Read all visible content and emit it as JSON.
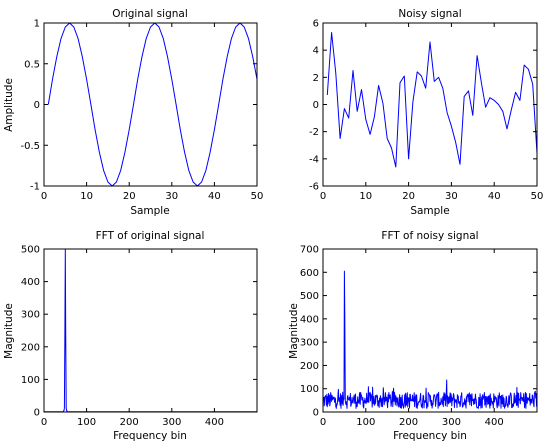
{
  "chart_data": [
    {
      "id": "original",
      "type": "line",
      "title": "Original signal",
      "xlabel": "Sample",
      "ylabel": "Amplitude",
      "xlim": [
        0,
        50
      ],
      "ylim": [
        -1,
        1
      ],
      "xticks": [
        0,
        10,
        20,
        30,
        40,
        50
      ],
      "yticks": [
        -1,
        -0.5,
        0,
        0.5,
        1
      ],
      "x": [
        1,
        2,
        3,
        4,
        5,
        6,
        7,
        8,
        9,
        10,
        11,
        12,
        13,
        14,
        15,
        16,
        17,
        18,
        19,
        20,
        21,
        22,
        23,
        24,
        25,
        26,
        27,
        28,
        29,
        30,
        31,
        32,
        33,
        34,
        35,
        36,
        37,
        38,
        39,
        40,
        41,
        42,
        43,
        44,
        45,
        46,
        47,
        48,
        49,
        50
      ],
      "series": [
        {
          "color": "#0000ff",
          "values": [
            0,
            0.309,
            0.588,
            0.809,
            0.951,
            1,
            0.951,
            0.809,
            0.588,
            0.309,
            0,
            -0.309,
            -0.588,
            -0.809,
            -0.951,
            -1,
            -0.951,
            -0.809,
            -0.588,
            -0.309,
            0,
            0.309,
            0.588,
            0.809,
            0.951,
            1,
            0.951,
            0.809,
            0.588,
            0.309,
            0,
            -0.309,
            -0.588,
            -0.809,
            -0.951,
            -1,
            -0.951,
            -0.809,
            -0.588,
            -0.309,
            0,
            0.309,
            0.588,
            0.809,
            0.951,
            1,
            0.951,
            0.809,
            0.588,
            0.309
          ]
        }
      ]
    },
    {
      "id": "noisy",
      "type": "line",
      "title": "Noisy signal",
      "xlabel": "Sample",
      "ylabel": "",
      "xlim": [
        0,
        50
      ],
      "ylim": [
        -6,
        6
      ],
      "xticks": [
        0,
        10,
        20,
        30,
        40,
        50
      ],
      "yticks": [
        -6,
        -4,
        -2,
        0,
        2,
        4,
        6
      ],
      "x": [
        1,
        2,
        3,
        4,
        5,
        6,
        7,
        8,
        9,
        10,
        11,
        12,
        13,
        14,
        15,
        16,
        17,
        18,
        19,
        20,
        21,
        22,
        23,
        24,
        25,
        26,
        27,
        28,
        29,
        30,
        31,
        32,
        33,
        34,
        35,
        36,
        37,
        38,
        39,
        40,
        41,
        42,
        43,
        44,
        45,
        46,
        47,
        48,
        49,
        50
      ],
      "series": [
        {
          "color": "#0000ff",
          "values": [
            0.7,
            5.3,
            2.3,
            -2.5,
            -0.3,
            -1.0,
            2.5,
            -0.5,
            1.1,
            -1.1,
            -2.2,
            -0.9,
            1.4,
            0.1,
            -2.5,
            -3.2,
            -4.6,
            1.6,
            2.1,
            -4.0,
            0.2,
            2.4,
            2.1,
            1.2,
            4.6,
            1.7,
            2.0,
            1.2,
            -0.6,
            -1.6,
            -2.8,
            -4.4,
            0.6,
            1.0,
            -0.8,
            3.6,
            1.6,
            -0.2,
            0.5,
            0.3,
            0.0,
            -0.5,
            -1.8,
            -0.4,
            0.9,
            0.3,
            2.9,
            2.6,
            1.5,
            -3.6
          ]
        }
      ]
    },
    {
      "id": "fft_original",
      "type": "line",
      "title": "FFT of original signal",
      "xlabel": "Frequency bin",
      "ylabel": "Magnitude",
      "xlim": [
        0,
        500
      ],
      "ylim": [
        0,
        500
      ],
      "xticks": [
        0,
        100,
        200,
        300,
        400
      ],
      "yticks": [
        0,
        100,
        200,
        300,
        400,
        500
      ],
      "peak": {
        "bin": 50,
        "value": 500
      }
    },
    {
      "id": "fft_noisy",
      "type": "line",
      "title": "FFT of noisy signal",
      "xlabel": "Frequency bin",
      "ylabel": "Magnitude",
      "xlim": [
        0,
        500
      ],
      "ylim": [
        0,
        700
      ],
      "xticks": [
        0,
        100,
        200,
        300,
        400
      ],
      "yticks": [
        0,
        100,
        200,
        300,
        400,
        500,
        600,
        700
      ],
      "peak": {
        "bin": 50,
        "value": 605
      },
      "noise_floor": {
        "min": 5,
        "max": 150,
        "typical": 50
      }
    }
  ]
}
